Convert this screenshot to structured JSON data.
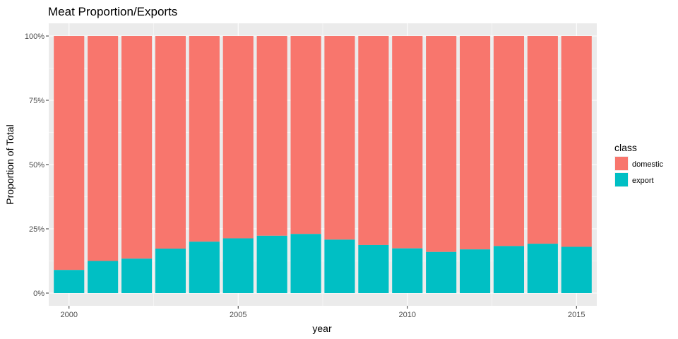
{
  "chart_data": {
    "type": "bar",
    "stacked": true,
    "title": "Meat Proportion/Exports",
    "xlabel": "year",
    "ylabel": "Proportion of Total",
    "x": [
      2000,
      2001,
      2002,
      2003,
      2004,
      2005,
      2006,
      2007,
      2008,
      2009,
      2010,
      2011,
      2012,
      2013,
      2014,
      2015
    ],
    "x_ticks": [
      "2000",
      "2005",
      "2010",
      "2015"
    ],
    "y_ticks": [
      "0%",
      "25%",
      "50%",
      "75%",
      "100%"
    ],
    "ylim": [
      0,
      1
    ],
    "xlim": [
      1999.4,
      2015.6
    ],
    "grid": true,
    "legend": {
      "title": "class",
      "placement": "right",
      "entries": [
        "domestic",
        "export"
      ]
    },
    "series": [
      {
        "name": "domestic",
        "color": "#F8766D",
        "values": [
          0.91,
          0.875,
          0.866,
          0.827,
          0.8,
          0.787,
          0.777,
          0.77,
          0.792,
          0.813,
          0.826,
          0.84,
          0.83,
          0.817,
          0.808,
          0.82
        ]
      },
      {
        "name": "export",
        "color": "#00BFC4",
        "values": [
          0.09,
          0.125,
          0.134,
          0.173,
          0.2,
          0.213,
          0.223,
          0.23,
          0.208,
          0.187,
          0.174,
          0.16,
          0.17,
          0.183,
          0.192,
          0.18
        ]
      }
    ],
    "panel_color": "#EBEBEB",
    "grid_color": "#FFFFFF"
  }
}
